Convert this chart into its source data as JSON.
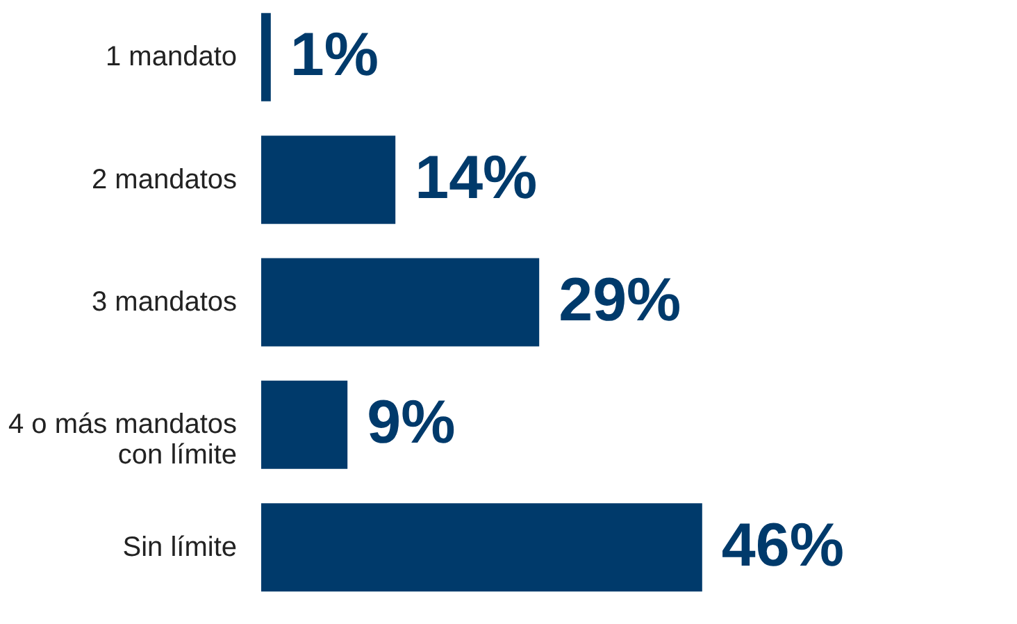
{
  "chart_data": {
    "type": "bar",
    "orientation": "horizontal",
    "categories": [
      "1 mandato",
      "2 mandatos",
      "3 mandatos",
      "4 o más mandatos\ncon límite",
      "Sin límite"
    ],
    "values": [
      1,
      14,
      29,
      9,
      46
    ],
    "value_labels": [
      "1%",
      "14%",
      "29%",
      "9%",
      "46%"
    ],
    "color": "#003a6b"
  }
}
